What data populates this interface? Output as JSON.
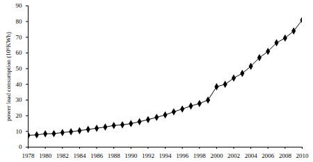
{
  "chart_data": {
    "type": "line",
    "y_label": "power load consumption (10⁹KWh)",
    "x": [
      1978,
      1979,
      1980,
      1981,
      1982,
      1983,
      1984,
      1985,
      1986,
      1987,
      1988,
      1989,
      1990,
      1991,
      1992,
      1993,
      1994,
      1995,
      1996,
      1997,
      1998,
      1999,
      2000,
      2001,
      2002,
      2003,
      2004,
      2005,
      2006,
      2007,
      2008,
      2009,
      2010
    ],
    "values": [
      7.5,
      7.8,
      8.5,
      8.6,
      9.3,
      9.8,
      10.5,
      11.3,
      12.0,
      12.8,
      13.8,
      14.2,
      15.0,
      16.2,
      17.5,
      19.0,
      20.5,
      22.5,
      24.3,
      26.2,
      27.8,
      30.0,
      38.5,
      40.0,
      44.0,
      47.0,
      51.5,
      57.0,
      61.0,
      66.5,
      69.5,
      74.0,
      81.0
    ],
    "color": "#000000",
    "marker": "diamond",
    "xlim": [
      1978,
      2010
    ],
    "xticks": [
      1978,
      1980,
      1982,
      1984,
      1986,
      1988,
      1990,
      1992,
      1994,
      1996,
      1998,
      2000,
      2002,
      2004,
      2006,
      2008,
      2010
    ],
    "ylim": [
      0,
      90
    ],
    "yticks": [
      0,
      10,
      20,
      30,
      40,
      50,
      60,
      70,
      80,
      90
    ],
    "grid": false
  }
}
